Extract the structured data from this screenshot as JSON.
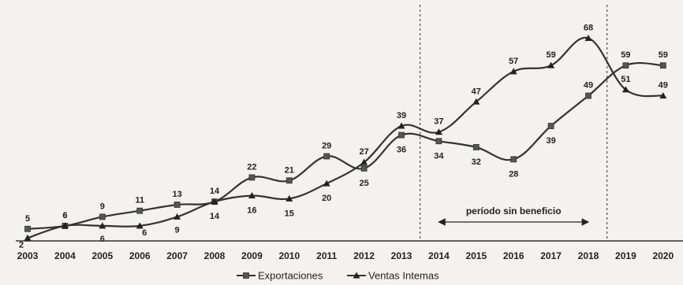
{
  "chart_data": {
    "type": "line",
    "x": [
      "2003",
      "2004",
      "2005",
      "2006",
      "2007",
      "2008",
      "2009",
      "2010",
      "2011",
      "2012",
      "2013",
      "2014",
      "2015",
      "2016",
      "2017",
      "2018",
      "2019",
      "2020"
    ],
    "series": [
      {
        "name": "Exportaciones",
        "marker": "square",
        "color": "#333333",
        "values": [
          5,
          6,
          9,
          11,
          13,
          14,
          22,
          21,
          29,
          25,
          36,
          34,
          32,
          28,
          39,
          49,
          59,
          59
        ]
      },
      {
        "name": "Ventas Intemas",
        "marker": "triangle",
        "color": "#333333",
        "values": [
          2,
          6,
          6,
          6,
          9,
          14,
          16,
          15,
          20,
          27,
          39,
          37,
          47,
          57,
          59,
          68,
          51,
          49
        ]
      }
    ],
    "ylim": [
      0,
      75
    ],
    "grid": false,
    "legend": "bottom",
    "annotations": [
      {
        "text": "período sin beneficio",
        "from": "2014",
        "to": "2018"
      }
    ],
    "vertical_markers": [
      "2013.5",
      "2018.5"
    ]
  }
}
